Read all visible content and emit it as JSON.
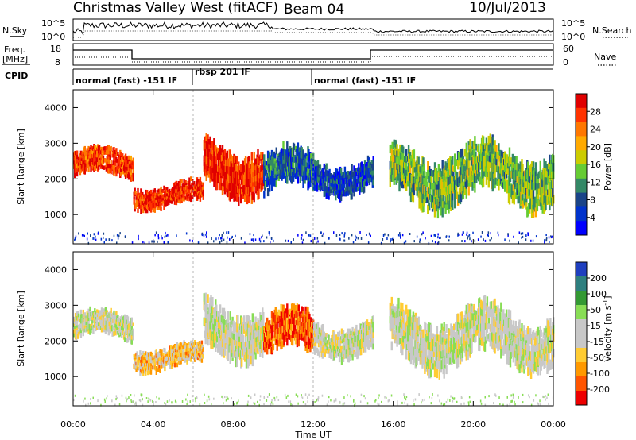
{
  "header": {
    "title": "Christmas Valley West (fitACF)",
    "beam": "Beam 04",
    "date": "10/Jul/2013"
  },
  "noise_panel": {
    "left_label": "N.Sky",
    "right_label": "N.Search",
    "left_ticks": [
      "10^5",
      "10^0"
    ],
    "right_ticks": [
      "10^5",
      "10^0"
    ]
  },
  "freq_panel": {
    "left_label_1": "Freq.",
    "left_label_2": "[MHz]",
    "right_label": "Nave",
    "left_ticks": [
      "18",
      "8"
    ],
    "right_ticks": [
      "60",
      "0"
    ]
  },
  "cpid_panel": {
    "label": "CPID",
    "segments": [
      {
        "label": "normal (fast) -151 IF",
        "start": 0.0,
        "end": 6.0
      },
      {
        "label": "rbsp 201 IF",
        "start": 6.0,
        "end": 12.0
      },
      {
        "label": "normal (fast) -151 IF",
        "start": 12.0,
        "end": 24.0
      }
    ]
  },
  "chart_data": [
    {
      "type": "heatmap",
      "quantity": "Power",
      "ylabel": "Slant Range [km]",
      "xlim": [
        0,
        24
      ],
      "ylim": [
        180,
        4500
      ],
      "y_ticks": [
        1000,
        2000,
        3000,
        4000
      ],
      "colorbar_label": "Power [dB]",
      "colorbar_ticks": [
        "28",
        "24",
        "20",
        "16",
        "12",
        "8",
        "4"
      ],
      "colorbar_colors": [
        "#e00000",
        "#ff3300",
        "#ff7700",
        "#ffaa00",
        "#cccc00",
        "#66cc33",
        "#338866",
        "#1a4488",
        "#0033cc",
        "#0000ff"
      ],
      "echo_bands": [
        {
          "t0": 0.0,
          "t1": 3.0,
          "r0": 2000,
          "r1": 2800,
          "level": 0.85
        },
        {
          "t0": 3.0,
          "t1": 6.5,
          "r0": 1200,
          "r1": 1900,
          "level": 0.9
        },
        {
          "t0": 6.5,
          "t1": 9.5,
          "r0": 1600,
          "r1": 3100,
          "level": 0.9
        },
        {
          "t0": 9.5,
          "t1": 12.0,
          "r0": 1500,
          "r1": 2800,
          "level": 0.25
        },
        {
          "t0": 12.0,
          "t1": 15.0,
          "r0": 1600,
          "r1": 2600,
          "level": 0.2
        },
        {
          "t0": 15.8,
          "t1": 24.0,
          "r0": 1300,
          "r1": 2900,
          "level": 0.45
        }
      ]
    },
    {
      "type": "heatmap",
      "quantity": "Velocity",
      "ylabel": "Slant Range [km]",
      "xlabel": "Time UT",
      "xlim": [
        0,
        24
      ],
      "ylim": [
        180,
        4500
      ],
      "y_ticks": [
        1000,
        2000,
        3000,
        4000
      ],
      "x_ticks": [
        "00:00",
        "04:00",
        "08:00",
        "12:00",
        "16:00",
        "20:00",
        "00:00"
      ],
      "colorbar_label": "Velocity [m s^-1]",
      "colorbar_ticks": [
        "200",
        "100",
        "50",
        "15",
        "-15",
        "-50",
        "-100",
        "-200"
      ],
      "colorbar_colors": [
        "#1f3fbf",
        "#2e7f7f",
        "#339933",
        "#88dd55",
        "#c8c8c8",
        "#c8c8c8",
        "#ffcc33",
        "#ff9900",
        "#ff5500",
        "#ee0000"
      ],
      "echo_bands": [
        {
          "t0": 0.0,
          "t1": 3.0,
          "r0": 2000,
          "r1": 2800,
          "level": 0.5
        },
        {
          "t0": 3.0,
          "t1": 6.5,
          "r0": 1200,
          "r1": 1900,
          "level": 0.65
        },
        {
          "t0": 6.5,
          "t1": 9.5,
          "r0": 1600,
          "r1": 3100,
          "level": 0.5
        },
        {
          "t0": 9.5,
          "t1": 12.0,
          "r0": 1500,
          "r1": 2800,
          "level": 0.85
        },
        {
          "t0": 12.0,
          "t1": 15.0,
          "r0": 1600,
          "r1": 2600,
          "level": 0.5
        },
        {
          "t0": 15.8,
          "t1": 24.0,
          "r0": 1300,
          "r1": 2900,
          "level": 0.5
        }
      ]
    }
  ]
}
